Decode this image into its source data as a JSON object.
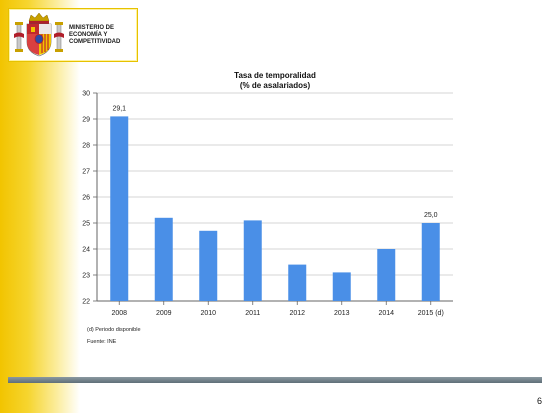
{
  "ministry": {
    "line1": "MINISTERIO DE",
    "line2": "ECONOMÍA Y",
    "line3": "COMPETITIVIDAD"
  },
  "colors": {
    "bar": "#4a8fe7",
    "grid": "#c8c8c8",
    "axis": "#666666",
    "band": "#f2c400"
  },
  "chart_data": {
    "type": "bar",
    "title": "Tasa de temporalidad",
    "subtitle": "(% de asalariados)",
    "categories": [
      "2008",
      "2009",
      "2010",
      "2011",
      "2012",
      "2013",
      "2014",
      "2015 (d)"
    ],
    "values": [
      29.1,
      25.2,
      24.7,
      25.1,
      23.4,
      23.1,
      24.0,
      25.0
    ],
    "data_labels": {
      "0": "29,1",
      "7": "25,0"
    },
    "ylim": [
      22,
      30
    ],
    "yticks": [
      22,
      23,
      24,
      25,
      26,
      27,
      28,
      29,
      30
    ],
    "grid": true,
    "xlabel": "",
    "ylabel": ""
  },
  "notes": {
    "note1": "(d) Periodo disponible",
    "note2": "Fuente: INE"
  },
  "page_number": "6",
  "icons": {
    "logo": "spain-coat-of-arms-icon"
  }
}
